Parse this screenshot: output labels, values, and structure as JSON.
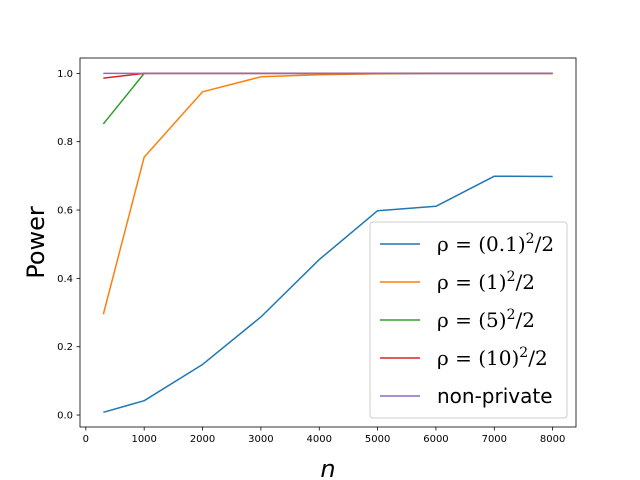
{
  "chart_data": {
    "type": "line",
    "title": "",
    "xlabel": "n",
    "ylabel": "Power",
    "xlim": [
      -100,
      8400
    ],
    "ylim": [
      -0.035,
      1.045
    ],
    "xticks": [
      0,
      1000,
      2000,
      3000,
      4000,
      5000,
      6000,
      7000,
      8000
    ],
    "xtick_labels": [
      "0",
      "1000",
      "2000",
      "3000",
      "4000",
      "5000",
      "6000",
      "7000",
      "8000"
    ],
    "yticks": [
      0.0,
      0.2,
      0.4,
      0.6,
      0.8,
      1.0
    ],
    "ytick_labels": [
      "0.0",
      "0.2",
      "0.4",
      "0.6",
      "0.8",
      "1.0"
    ],
    "grid": false,
    "legend_position": "lower-right",
    "series": [
      {
        "name": "ρ = (0.1)^2/2",
        "label_parts": {
          "lhs": "ρ = (0.1)",
          "sup": "2",
          "rhs": "/2"
        },
        "color": "#1f77b4",
        "x": [
          300,
          1000,
          2000,
          3000,
          4000,
          5000,
          6000,
          7000,
          8000
        ],
        "y": [
          0.008,
          0.042,
          0.148,
          0.287,
          0.455,
          0.598,
          0.611,
          0.699,
          0.698
        ]
      },
      {
        "name": "ρ = (1)^2/2",
        "label_parts": {
          "lhs": "ρ = (1)",
          "sup": "2",
          "rhs": "/2"
        },
        "color": "#ff7f0e",
        "x": [
          300,
          1000,
          2000,
          3000,
          4000,
          5000,
          6000,
          7000,
          8000
        ],
        "y": [
          0.295,
          0.755,
          0.946,
          0.99,
          0.996,
          0.999,
          1.0,
          1.0,
          1.0
        ]
      },
      {
        "name": "ρ = (5)^2/2",
        "label_parts": {
          "lhs": "ρ = (5)",
          "sup": "2",
          "rhs": "/2"
        },
        "color": "#2ca02c",
        "x": [
          300,
          1000,
          2000,
          3000,
          4000,
          5000,
          6000,
          7000,
          8000
        ],
        "y": [
          0.852,
          1.0,
          1.0,
          1.0,
          1.0,
          1.0,
          1.0,
          1.0,
          1.0
        ]
      },
      {
        "name": "ρ = (10)^2/2",
        "label_parts": {
          "lhs": "ρ = (10)",
          "sup": "2",
          "rhs": "/2"
        },
        "color": "#d62728",
        "x": [
          300,
          1000,
          2000,
          3000,
          4000,
          5000,
          6000,
          7000,
          8000
        ],
        "y": [
          0.986,
          1.0,
          1.0,
          1.0,
          1.0,
          1.0,
          1.0,
          1.0,
          1.0
        ]
      },
      {
        "name": "non-private",
        "label_parts": {
          "lhs": "non-private",
          "sup": "",
          "rhs": ""
        },
        "color": "#9467bd",
        "x": [
          300,
          1000,
          2000,
          3000,
          4000,
          5000,
          6000,
          7000,
          8000
        ],
        "y": [
          1.0,
          1.0,
          1.0,
          1.0,
          1.0,
          1.0,
          1.0,
          1.0,
          1.0
        ]
      }
    ]
  }
}
